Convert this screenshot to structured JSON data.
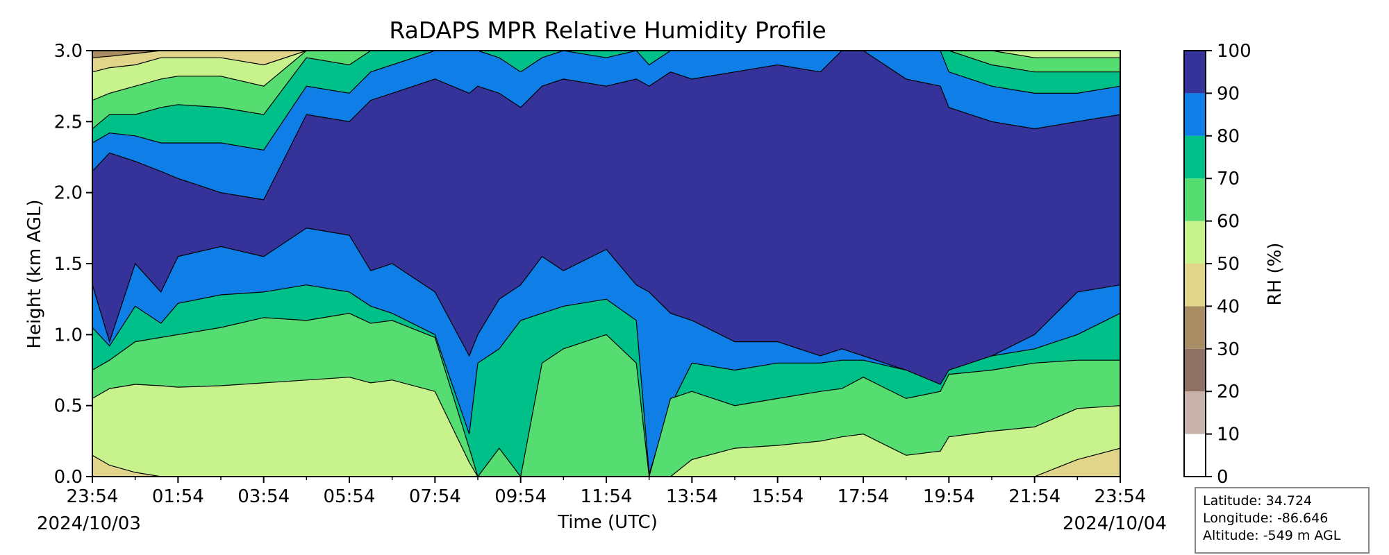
{
  "chart_data": {
    "type": "filled-contour",
    "title": "RaDAPS MPR Relative Humidity Profile",
    "xlabel": "Time (UTC)",
    "ylabel": "Height (km AGL)",
    "colorbar_label": "RH (%)",
    "x_ticks": [
      "23:54",
      "01:54",
      "03:54",
      "05:54",
      "07:54",
      "09:54",
      "11:54",
      "13:54",
      "15:54",
      "17:54",
      "19:54",
      "21:54",
      "23:54"
    ],
    "x_range_hours": [
      0,
      24
    ],
    "start_date": "2024/10/03",
    "end_date": "2024/10/04",
    "y_ticks": [
      "0.0",
      "0.5",
      "1.0",
      "1.5",
      "2.0",
      "2.5",
      "3.0"
    ],
    "ylim": [
      0,
      3
    ],
    "levels": [
      0,
      10,
      20,
      30,
      40,
      50,
      60,
      70,
      80,
      90,
      100
    ],
    "level_labels": [
      "0",
      "10",
      "20",
      "30",
      "40",
      "50",
      "60",
      "70",
      "80",
      "90",
      "100"
    ],
    "level_colors": [
      "#ffffff",
      "#c7b3ab",
      "#8e7064",
      "#a88c63",
      "#e0d58a",
      "#c8f28c",
      "#55dd71",
      "#00c08a",
      "#0f7ee6",
      "#35329a"
    ],
    "profile_times_hours": [
      0,
      0.4,
      1,
      1.6,
      2,
      3,
      4,
      5,
      6,
      6.5,
      7,
      8,
      8.8,
      9,
      9.5,
      10,
      10.5,
      11,
      12,
      12.7,
      13,
      13.5,
      14,
      15,
      16,
      17,
      17.5,
      18,
      19,
      19.8,
      20,
      21,
      22,
      23,
      24
    ],
    "threshold_heights_km": {
      "rh_10": [
        0,
        0,
        0,
        0,
        0,
        0,
        0,
        0,
        0,
        0,
        0,
        0,
        0,
        0,
        0,
        0,
        0,
        0,
        0,
        0,
        0,
        0,
        0,
        0,
        0,
        0,
        0,
        0,
        0,
        0,
        0,
        0,
        0,
        0,
        0
      ],
      "rh_20": [
        0,
        0,
        0,
        0,
        0,
        0,
        0,
        0,
        0,
        0,
        0,
        0,
        0,
        0,
        0,
        0,
        0,
        0,
        0,
        0,
        0,
        0,
        0,
        0,
        0,
        0,
        0,
        0,
        0,
        0,
        0,
        0,
        0,
        0,
        0
      ],
      "rh_30": [
        0,
        0,
        0,
        0,
        0,
        0,
        0,
        0,
        0,
        0,
        0,
        0,
        0,
        0,
        0,
        0,
        0,
        0,
        0,
        0,
        0,
        0,
        0,
        0,
        0,
        0,
        0,
        0,
        0,
        0,
        0,
        0,
        0,
        0,
        0
      ],
      "rh_40": [
        0,
        0,
        0,
        0,
        0,
        0,
        0,
        0,
        0,
        0,
        0,
        0,
        0,
        0,
        0,
        0,
        0,
        0,
        0,
        0,
        0,
        0,
        0,
        0,
        0,
        0,
        0,
        0,
        0,
        0,
        0,
        0,
        0,
        0,
        0
      ],
      "rh_50": [
        0,
        0,
        0,
        0,
        0,
        0,
        0,
        0,
        0,
        0,
        0,
        0,
        0,
        0,
        0,
        0,
        0,
        0,
        0,
        0,
        0,
        0,
        0,
        0,
        0,
        0,
        0,
        0,
        0,
        0,
        0,
        0,
        0,
        0,
        0
      ],
      "rh_60": [
        0.15,
        0.08,
        0.03,
        0,
        0,
        0,
        0,
        0,
        0,
        0,
        0,
        0,
        0,
        0,
        0,
        0,
        0,
        0,
        0,
        0,
        0,
        0,
        0,
        0,
        0,
        0,
        0,
        0,
        0,
        0,
        0,
        0,
        0,
        0.12,
        0.2
      ],
      "rh_70": [
        0.55,
        0.62,
        0.65,
        0.64,
        0.63,
        0.64,
        0.66,
        0.68,
        0.7,
        0.66,
        0.68,
        0.6,
        0.1,
        0,
        0,
        0,
        0,
        0,
        0,
        0,
        0,
        0,
        0.12,
        0.2,
        0.22,
        0.25,
        0.28,
        0.3,
        0.15,
        0.18,
        0.28,
        0.32,
        0.35,
        0.48,
        0.5
      ],
      "rh_80": [
        0.75,
        0.82,
        0.95,
        0.98,
        1.0,
        1.05,
        1.12,
        1.1,
        1.15,
        1.08,
        1.1,
        0.98,
        0.2,
        0,
        0.2,
        0,
        0.8,
        0.9,
        1.0,
        0.8,
        0,
        0.55,
        0.6,
        0.5,
        0.55,
        0.6,
        0.62,
        0.7,
        0.55,
        0.6,
        0.72,
        0.75,
        0.8,
        0.82,
        0.82
      ],
      "rh_90": [
        1.05,
        0.92,
        1.2,
        1.08,
        1.22,
        1.28,
        1.3,
        1.35,
        1.3,
        1.2,
        1.15,
        1.0,
        0.3,
        0.8,
        0.9,
        1.1,
        1.15,
        1.2,
        1.25,
        1.1,
        0.02,
        0.5,
        0.8,
        0.75,
        0.8,
        0.8,
        0.82,
        0.82,
        0.75,
        0.65,
        0.75,
        0.85,
        0.9,
        1.0,
        1.15
      ],
      "rh_100": [
        1.35,
        0.95,
        1.5,
        1.3,
        1.55,
        1.62,
        1.55,
        1.75,
        1.7,
        1.45,
        1.5,
        1.3,
        0.85,
        1.0,
        1.25,
        1.35,
        1.55,
        1.45,
        1.6,
        1.35,
        1.3,
        1.15,
        1.1,
        0.95,
        0.95,
        0.85,
        0.9,
        0.85,
        0.75,
        0.5,
        0.6,
        0.85,
        1.0,
        1.3,
        1.35
      ]
    },
    "upper_threshold_heights_km": {
      "rh_90_top": [
        2.15,
        2.28,
        2.22,
        2.15,
        2.1,
        2.0,
        1.95,
        2.55,
        2.5,
        2.65,
        2.7,
        2.8,
        2.7,
        2.75,
        2.7,
        2.6,
        2.75,
        2.8,
        2.75,
        2.8,
        2.75,
        2.85,
        2.8,
        2.85,
        2.9,
        2.85,
        3.0,
        3.0,
        2.8,
        2.75,
        2.6,
        2.5,
        2.45,
        2.5,
        2.55
      ],
      "rh_80_top": [
        2.35,
        2.42,
        2.4,
        2.35,
        2.35,
        2.35,
        2.3,
        2.75,
        2.7,
        2.85,
        2.9,
        3.0,
        3.0,
        3.0,
        2.95,
        2.85,
        2.95,
        3.0,
        2.95,
        3.0,
        2.9,
        3.0,
        3.0,
        3.0,
        3.0,
        3.0,
        3.0,
        3.0,
        3.0,
        3.0,
        2.85,
        2.75,
        2.7,
        2.7,
        2.75
      ],
      "rh_70_top": [
        2.45,
        2.55,
        2.55,
        2.6,
        2.62,
        2.6,
        2.55,
        2.95,
        2.9,
        3.0,
        3.0,
        3.0,
        3.0,
        3.0,
        3.0,
        3.0,
        3.0,
        3.0,
        3.0,
        3.0,
        3.0,
        3.0,
        3.0,
        3.0,
        3.0,
        3.0,
        3.0,
        3.0,
        3.0,
        3.0,
        3.0,
        2.9,
        2.85,
        2.85,
        2.85
      ],
      "rh_60_top": [
        2.65,
        2.7,
        2.75,
        2.8,
        2.82,
        2.82,
        2.75,
        3.0,
        3.0,
        3.0,
        3.0,
        3.0,
        3.0,
        3.0,
        3.0,
        3.0,
        3.0,
        3.0,
        3.0,
        3.0,
        3.0,
        3.0,
        3.0,
        3.0,
        3.0,
        3.0,
        3.0,
        3.0,
        3.0,
        3.0,
        3.0,
        3.0,
        2.95,
        2.95,
        2.95
      ],
      "rh_50_top": [
        2.85,
        2.88,
        2.9,
        2.95,
        2.95,
        2.95,
        2.9,
        3.0,
        3.0,
        3.0,
        3.0,
        3.0,
        3.0,
        3.0,
        3.0,
        3.0,
        3.0,
        3.0,
        3.0,
        3.0,
        3.0,
        3.0,
        3.0,
        3.0,
        3.0,
        3.0,
        3.0,
        3.0,
        3.0,
        3.0,
        3.0,
        3.0,
        3.0,
        3.0,
        3.0
      ],
      "rh_40_top": [
        2.95,
        2.96,
        2.98,
        3.0,
        3.0,
        3.0,
        3.0,
        3.0,
        3.0,
        3.0,
        3.0,
        3.0,
        3.0,
        3.0,
        3.0,
        3.0,
        3.0,
        3.0,
        3.0,
        3.0,
        3.0,
        3.0,
        3.0,
        3.0,
        3.0,
        3.0,
        3.0,
        3.0,
        3.0,
        3.0,
        3.0,
        3.0,
        3.0,
        3.0,
        3.0
      ]
    }
  },
  "info": {
    "latitude": "Latitude: 34.724",
    "longitude": "Longitude: -86.646",
    "altitude": "Altitude: -549 m AGL"
  }
}
